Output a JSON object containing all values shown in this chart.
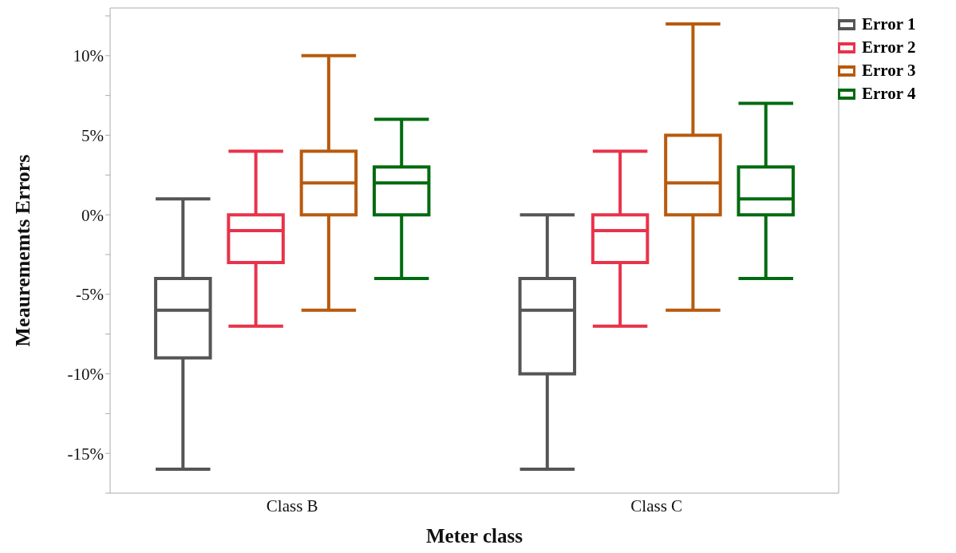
{
  "chart_data": {
    "type": "box",
    "xlabel": "Meter class",
    "ylabel": "Meaurememts Errors",
    "categories": [
      "Class B",
      "Class C"
    ],
    "ylim": [
      -17.5,
      13
    ],
    "yticks": [
      {
        "value": -17.5,
        "label": null
      },
      {
        "value": -15,
        "label": "-15%"
      },
      {
        "value": -12.5,
        "label": null
      },
      {
        "value": -10,
        "label": "-10%"
      },
      {
        "value": -7.5,
        "label": null
      },
      {
        "value": -5,
        "label": "-5%"
      },
      {
        "value": -2.5,
        "label": null
      },
      {
        "value": 0,
        "label": "0%"
      },
      {
        "value": 2.5,
        "label": null
      },
      {
        "value": 5,
        "label": "5%"
      },
      {
        "value": 7.5,
        "label": null
      },
      {
        "value": 10,
        "label": "10%"
      },
      {
        "value": 12.5,
        "label": null
      }
    ],
    "legend": "top right",
    "grid": false,
    "series": [
      {
        "name": "Error 1",
        "color": "#555555",
        "boxes": [
          {
            "low": -16,
            "q1": -9,
            "median": -6,
            "q3": -4,
            "high": 1
          },
          {
            "low": -16,
            "q1": -10,
            "median": -6,
            "q3": -4,
            "high": 0
          }
        ]
      },
      {
        "name": "Error 2",
        "color": "#e8334a",
        "boxes": [
          {
            "low": -7,
            "q1": -3,
            "median": -1,
            "q3": 0,
            "high": 4
          },
          {
            "low": -7,
            "q1": -3,
            "median": -1,
            "q3": 0,
            "high": 4
          }
        ]
      },
      {
        "name": "Error 3",
        "color": "#b85a0e",
        "boxes": [
          {
            "low": -6,
            "q1": 0,
            "median": 2,
            "q3": 4,
            "high": 10
          },
          {
            "low": -6,
            "q1": 0,
            "median": 2,
            "q3": 5,
            "high": 12
          }
        ]
      },
      {
        "name": "Error 4",
        "color": "#006a10",
        "boxes": [
          {
            "low": -4,
            "q1": 0,
            "median": 2,
            "q3": 3,
            "high": 6
          },
          {
            "low": -4,
            "q1": 0,
            "median": 1,
            "q3": 3,
            "high": 7
          }
        ]
      }
    ]
  }
}
